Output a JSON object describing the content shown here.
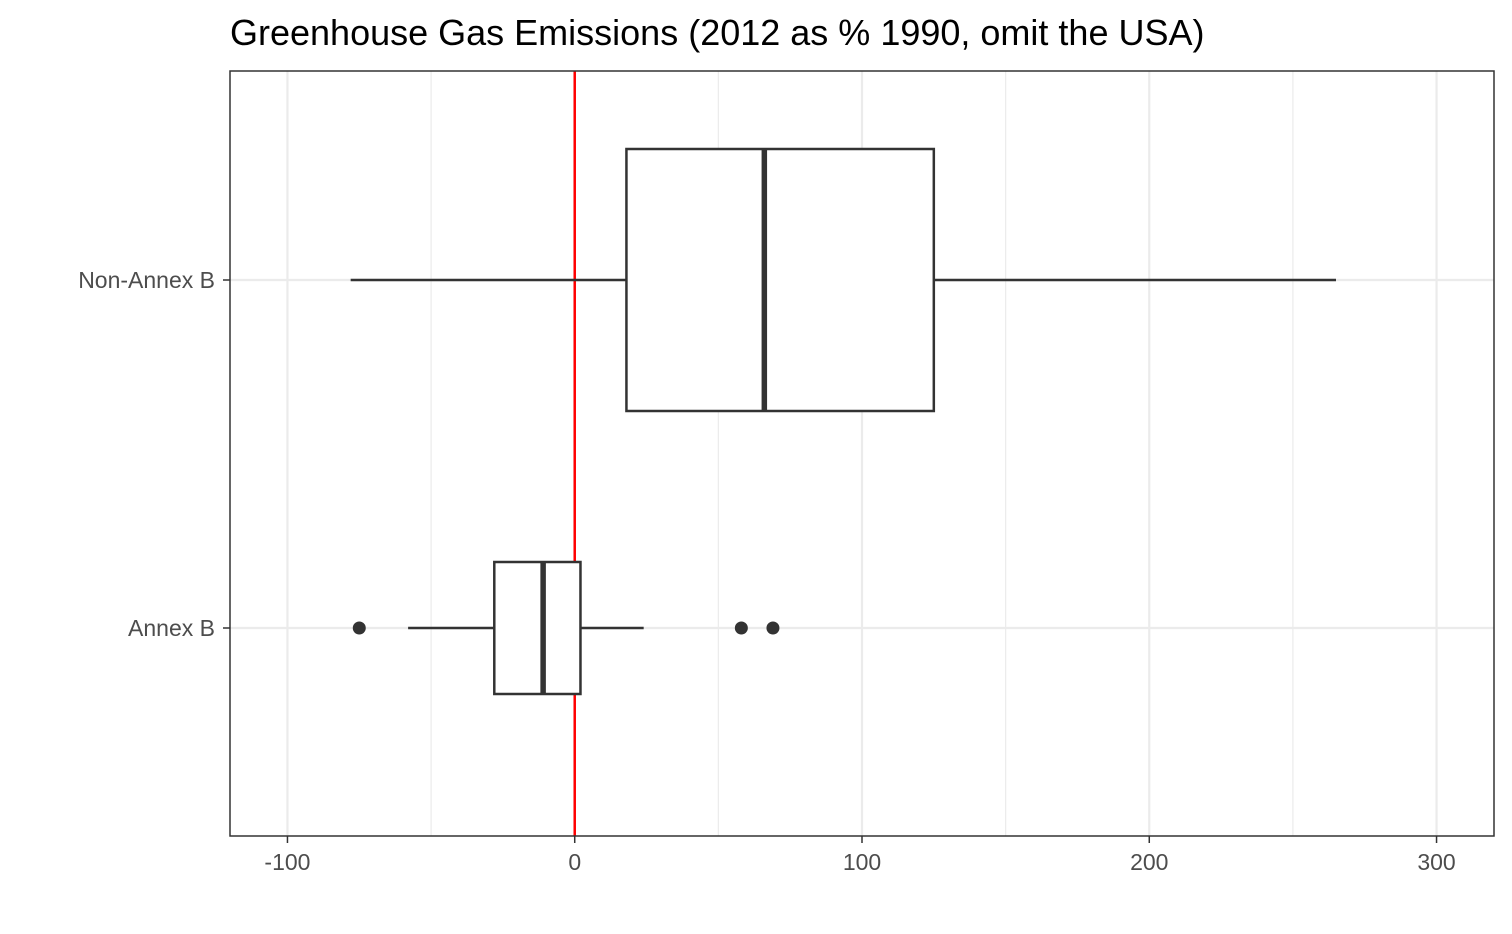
{
  "chart_data": {
    "type": "boxplot",
    "orientation": "horizontal",
    "title": "Greenhouse Gas Emissions (2012 as % 1990, omit the USA)",
    "xlabel": "",
    "ylabel": "",
    "xlim": [
      -120,
      320
    ],
    "x_ticks": [
      -100,
      0,
      100,
      200,
      300
    ],
    "x_tick_labels": [
      "-100",
      "0",
      "100",
      "200",
      "300"
    ],
    "x_minor_ticks": [
      -50,
      50,
      150,
      250
    ],
    "grid": true,
    "reference_line": {
      "x": 0,
      "color": "#ff0000"
    },
    "categories": [
      "Non-Annex B",
      "Annex B"
    ],
    "boxes": [
      {
        "category": "Non-Annex B",
        "whisker_low": -78,
        "q1": 18,
        "median": 66,
        "q3": 125,
        "whisker_high": 265,
        "outliers": []
      },
      {
        "category": "Annex B",
        "whisker_low": -58,
        "q1": -28,
        "median": -11,
        "q3": 2,
        "whisker_high": 24,
        "outliers": [
          -75,
          58,
          69
        ]
      }
    ],
    "colors": {
      "box_stroke": "#333333",
      "box_fill": "#ffffff",
      "grid": "#ebebeb",
      "panel_border": "#333333",
      "reference_line": "#ff0000"
    }
  }
}
